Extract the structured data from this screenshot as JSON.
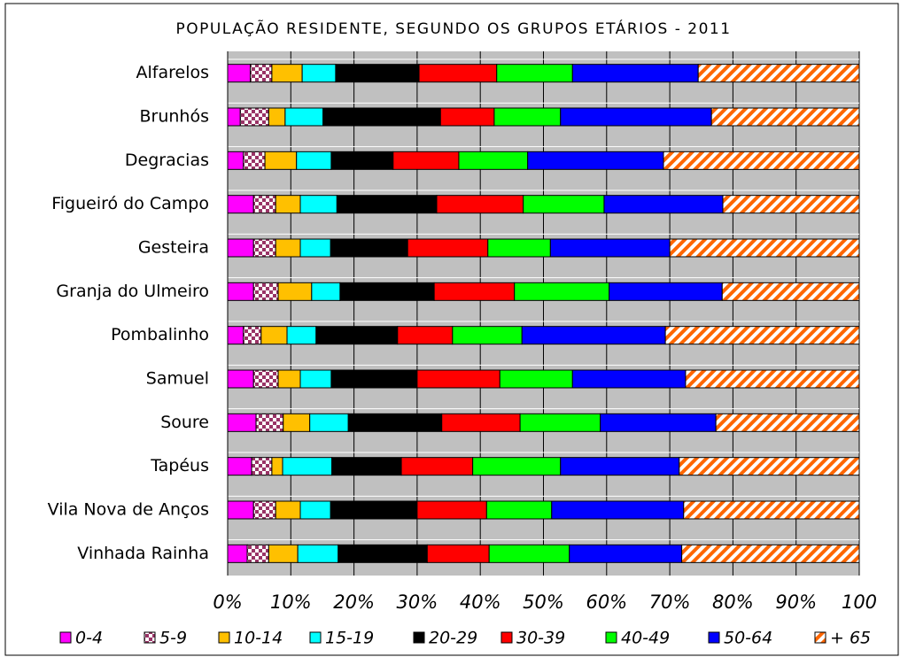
{
  "chart_data": {
    "type": "stacked-bar-horizontal-100",
    "title": "POPULAÇÃO RESIDENTE, SEGUNDO OS GRUPOS ETÁRIOS - 2011",
    "categories": [
      "Alfarelos",
      "Brunhós",
      "Degracias",
      "Figueiró do Campo",
      "Gesteira",
      "Granja do Ulmeiro",
      "Pombalinho",
      "Samuel",
      "Soure",
      "Tapéus",
      "Vila Nova de Anços",
      "Vinhada Rainha"
    ],
    "series": [
      {
        "name": "0-4",
        "color": "#ff00ff",
        "values": [
          3.6,
          2.0,
          2.5,
          4.1,
          4.1,
          4.1,
          2.5,
          4.1,
          4.5,
          3.8,
          4.1,
          3.1
        ]
      },
      {
        "name": "5-9",
        "color": "#993366",
        "pattern": "checker",
        "values": [
          3.4,
          4.5,
          3.4,
          3.5,
          3.5,
          3.9,
          2.8,
          3.9,
          4.3,
          3.2,
          3.5,
          3.4
        ]
      },
      {
        "name": "10-14",
        "color": "#ffc000",
        "values": [
          4.8,
          2.6,
          5.0,
          3.9,
          3.9,
          5.3,
          4.1,
          3.5,
          4.2,
          1.7,
          3.9,
          4.6
        ]
      },
      {
        "name": "15-19",
        "color": "#00ffff",
        "values": [
          5.3,
          6.0,
          5.5,
          5.8,
          4.8,
          4.5,
          4.6,
          4.9,
          6.1,
          7.8,
          4.8,
          6.4
        ]
      },
      {
        "name": "20-29",
        "color": "#000000",
        "values": [
          13.2,
          18.6,
          9.8,
          15.8,
          12.2,
          14.9,
          12.9,
          13.6,
          14.8,
          11.0,
          13.7,
          14.1
        ]
      },
      {
        "name": "30-39",
        "color": "#ff0000",
        "values": [
          12.3,
          8.5,
          10.4,
          13.7,
          12.7,
          12.7,
          8.7,
          13.1,
          12.4,
          11.3,
          11.0,
          9.8
        ]
      },
      {
        "name": "40-49",
        "color": "#00ff00",
        "values": [
          12.0,
          10.5,
          10.9,
          12.8,
          9.9,
          15.0,
          11.0,
          11.5,
          12.7,
          13.9,
          10.3,
          12.7
        ]
      },
      {
        "name": "50-64",
        "color": "#0000ff",
        "values": [
          19.9,
          23.9,
          21.5,
          18.8,
          18.9,
          17.9,
          22.7,
          17.9,
          18.3,
          18.8,
          20.9,
          17.8
        ]
      },
      {
        "name": "+ 65",
        "color": "#ff6600",
        "pattern": "hatch",
        "values": [
          25.5,
          23.4,
          31.0,
          21.6,
          30.0,
          21.7,
          30.7,
          27.5,
          22.7,
          28.5,
          27.8,
          28.1
        ]
      }
    ],
    "xlim": [
      0,
      100
    ],
    "xticks": [
      {
        "value": 0,
        "label": "0%"
      },
      {
        "value": 10,
        "label": "10%"
      },
      {
        "value": 20,
        "label": "20%"
      },
      {
        "value": 30,
        "label": "30%"
      },
      {
        "value": 40,
        "label": "40%"
      },
      {
        "value": 50,
        "label": "50%"
      },
      {
        "value": 60,
        "label": "60%"
      },
      {
        "value": 70,
        "label": "70%"
      },
      {
        "value": 80,
        "label": "80%"
      },
      {
        "value": 90,
        "label": "90%"
      },
      {
        "value": 100,
        "label": "100"
      }
    ],
    "grid": true,
    "legend": "bottom"
  }
}
